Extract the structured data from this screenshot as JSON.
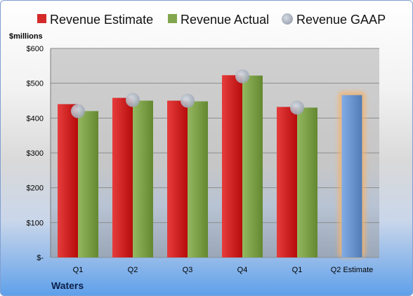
{
  "chart_data": {
    "type": "bar",
    "categories": [
      "Q1",
      "Q2",
      "Q3",
      "Q4",
      "Q1",
      "Q2 Estimate"
    ],
    "series": [
      {
        "name": "Revenue Estimate",
        "values": [
          440,
          458,
          450,
          523,
          432,
          null
        ],
        "color": "#d42a2a"
      },
      {
        "name": "Revenue Actual",
        "values": [
          420,
          450,
          448,
          522,
          430,
          null
        ],
        "color": "#82a64e"
      },
      {
        "name": "Revenue GAAP",
        "values": [
          420,
          452,
          450,
          520,
          430,
          null
        ],
        "color": "#b7bfcc",
        "marker": "circle"
      },
      {
        "name": "",
        "values": [
          null,
          null,
          null,
          null,
          null,
          466
        ],
        "color": "#6f9ad4"
      }
    ],
    "ylabel": "$millions",
    "ylim": [
      0,
      600
    ],
    "yticks": [
      0,
      100,
      200,
      300,
      400,
      500,
      600
    ],
    "ytick_labels": [
      "$-",
      "$100",
      "$200",
      "$300",
      "$400",
      "$500",
      "$600"
    ],
    "legend_placement": "top",
    "grid": true,
    "company": "Waters"
  }
}
